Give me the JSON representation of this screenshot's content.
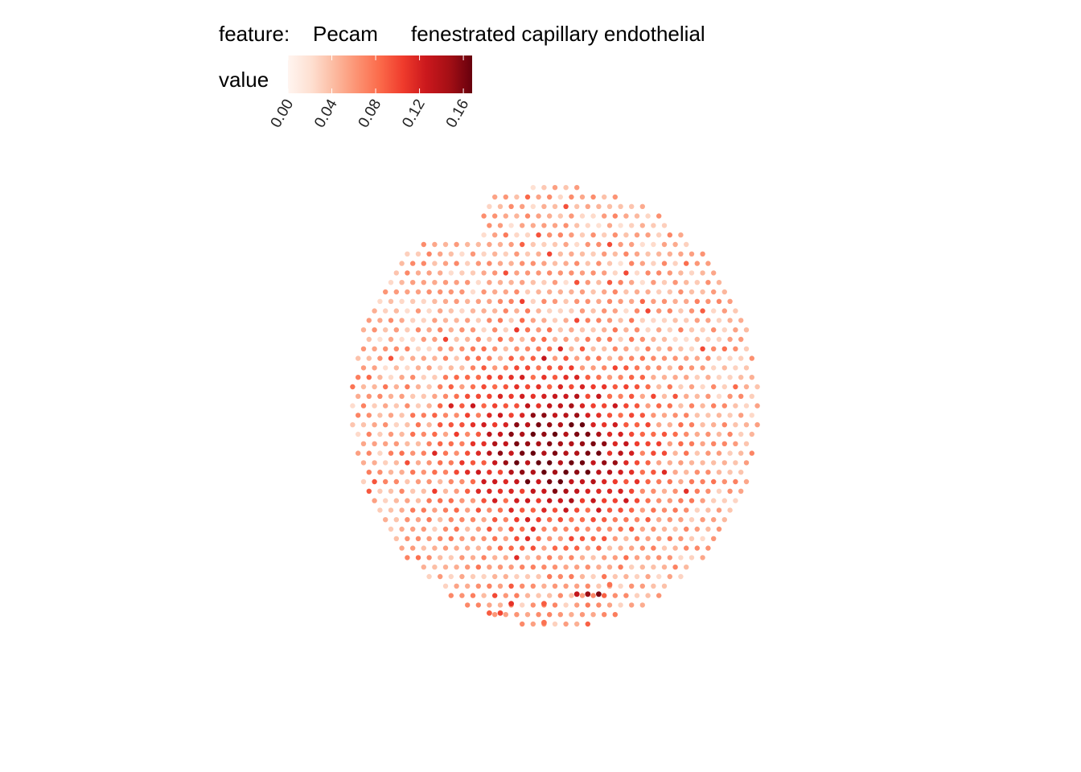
{
  "chart_data": {
    "type": "scatter",
    "title": "",
    "legend": {
      "position": "top-left",
      "feature_label": "feature:",
      "feature_value": "Pecam",
      "subtitle": "fenestrated capillary endothelial",
      "colorbar_title": "value",
      "ticks": [
        "0.00",
        "0.04",
        "0.08",
        "0.12",
        "0.16"
      ],
      "range": [
        0,
        0.168
      ]
    },
    "colors": {
      "scale": [
        "#fff5f0",
        "#fee0d2",
        "#fcbba1",
        "#fc9272",
        "#fb6a4a",
        "#ef3b2c",
        "#cb181d",
        "#a50f15",
        "#67000d"
      ]
    },
    "axes": {
      "visible": false,
      "grid": false
    },
    "spot_grid": {
      "x_range": [
        -13,
        13
      ],
      "y_range": [
        -20,
        20
      ],
      "note_value_hotspot": {
        "x": 0,
        "y": 0,
        "peak_value": 0.13
      }
    },
    "isolated_spots": [
      {
        "x": -5,
        "y": 18,
        "value": 0.1
      },
      {
        "x": -6,
        "y": 18,
        "value": 0.09
      },
      {
        "x": -4,
        "y": 17,
        "value": 0.11
      },
      {
        "x": -1,
        "y": 17,
        "value": 0.09
      },
      {
        "x": -1,
        "y": 19,
        "value": 0.08
      },
      {
        "x": 2,
        "y": 16,
        "value": 0.13
      },
      {
        "x": 3,
        "y": 16,
        "value": 0.15
      },
      {
        "x": 4,
        "y": 16,
        "value": 0.16
      },
      {
        "x": 5,
        "y": 15,
        "value": 0.08
      }
    ]
  }
}
